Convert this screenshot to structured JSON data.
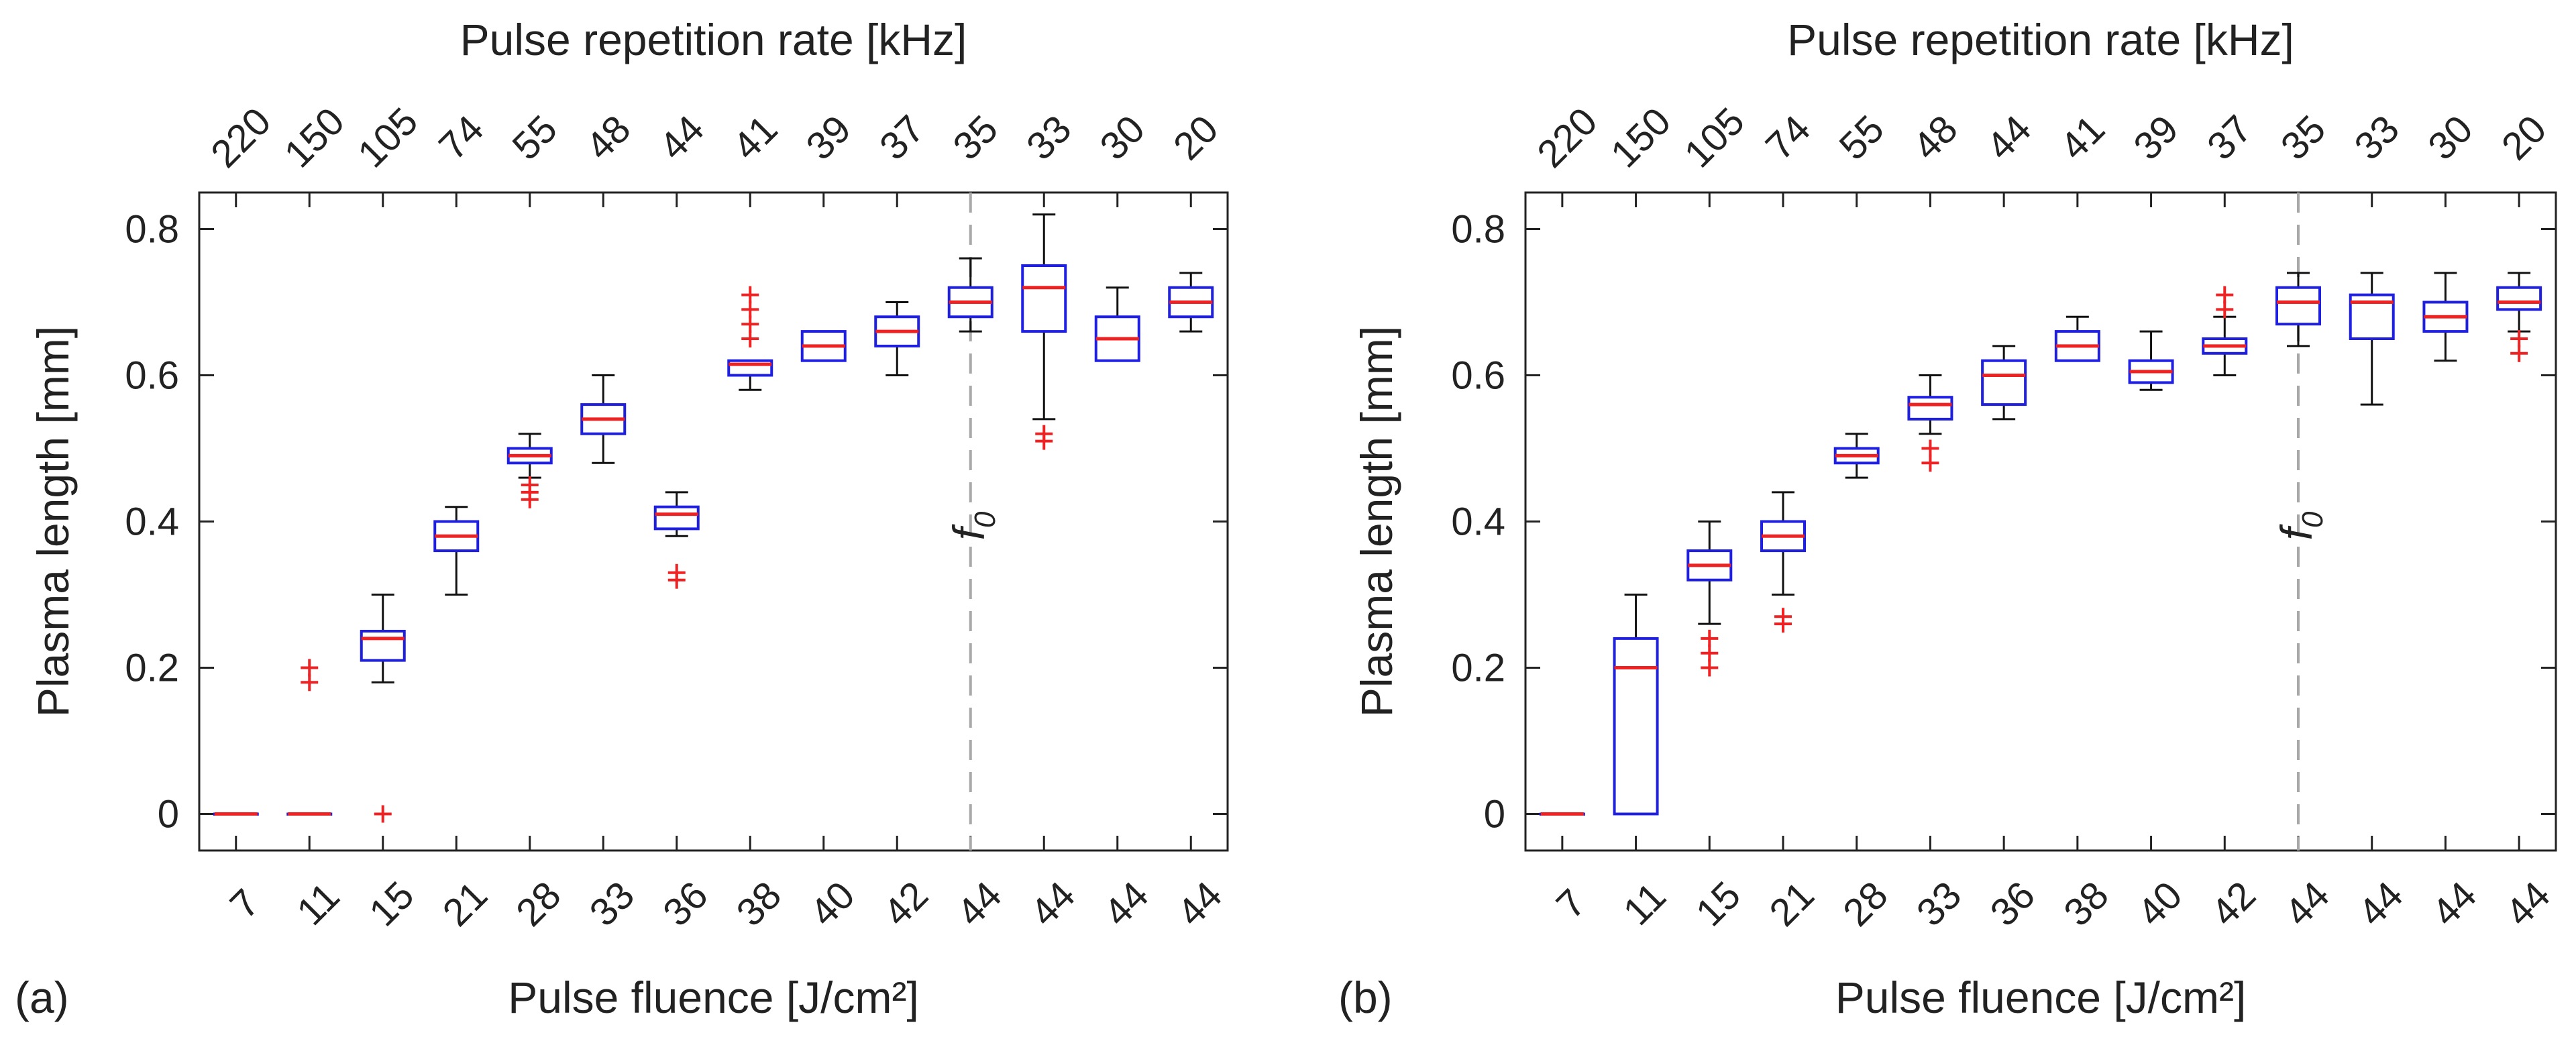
{
  "colors": {
    "box": "#1f1fe0",
    "median": "#ee2222",
    "outlier": "#ee2222",
    "whisker": "#111111",
    "marker_line": "#a8a8a8",
    "axis": "#222222"
  },
  "chart_data": [
    {
      "panel_label": "(a)",
      "type": "boxplot",
      "xlabel": "Pulse fluence [J/cm²]",
      "ylabel": "Plasma length [mm]",
      "top_xlabel": "Pulse repetition rate [kHz]",
      "ylim": [
        -0.05,
        0.85
      ],
      "yticks": [
        0,
        0.2,
        0.4,
        0.6,
        0.8
      ],
      "ytick_labels": [
        "0",
        "0.2",
        "0.4",
        "0.6",
        "0.8"
      ],
      "categories": [
        "7",
        "11",
        "15",
        "21",
        "28",
        "33",
        "36",
        "38",
        "40",
        "42",
        "44",
        "44",
        "44",
        "44"
      ],
      "top_categories": [
        "220",
        "150",
        "105",
        "74",
        "55",
        "48",
        "44",
        "41",
        "39",
        "37",
        "35",
        "33",
        "30",
        "20"
      ],
      "marker": {
        "label": "f",
        "subscript": "0",
        "after_index": 10
      },
      "boxes": [
        {
          "q1": 0,
          "median": 0,
          "q3": 0,
          "wlo": 0,
          "whi": 0,
          "outliers": []
        },
        {
          "q1": 0,
          "median": 0,
          "q3": 0,
          "wlo": 0,
          "whi": 0,
          "outliers": [
            0.18,
            0.2
          ]
        },
        {
          "q1": 0.21,
          "median": 0.24,
          "q3": 0.25,
          "wlo": 0.18,
          "whi": 0.3,
          "outliers": [
            0
          ]
        },
        {
          "q1": 0.36,
          "median": 0.38,
          "q3": 0.4,
          "wlo": 0.3,
          "whi": 0.42,
          "outliers": []
        },
        {
          "q1": 0.48,
          "median": 0.49,
          "q3": 0.5,
          "wlo": 0.46,
          "whi": 0.52,
          "outliers": [
            0.43,
            0.44,
            0.45
          ]
        },
        {
          "q1": 0.52,
          "median": 0.54,
          "q3": 0.56,
          "wlo": 0.48,
          "whi": 0.6,
          "outliers": []
        },
        {
          "q1": 0.39,
          "median": 0.41,
          "q3": 0.42,
          "wlo": 0.38,
          "whi": 0.44,
          "outliers": [
            0.32,
            0.33
          ]
        },
        {
          "q1": 0.6,
          "median": 0.615,
          "q3": 0.62,
          "wlo": 0.58,
          "whi": 0.62,
          "outliers": [
            0.65,
            0.67,
            0.69,
            0.71
          ]
        },
        {
          "q1": 0.62,
          "median": 0.64,
          "q3": 0.66,
          "wlo": 0.62,
          "whi": 0.66,
          "outliers": []
        },
        {
          "q1": 0.64,
          "median": 0.66,
          "q3": 0.68,
          "wlo": 0.6,
          "whi": 0.7,
          "outliers": []
        },
        {
          "q1": 0.68,
          "median": 0.7,
          "q3": 0.72,
          "wlo": 0.66,
          "whi": 0.76,
          "outliers": []
        },
        {
          "q1": 0.66,
          "median": 0.72,
          "q3": 0.75,
          "wlo": 0.54,
          "whi": 0.82,
          "outliers": [
            0.51,
            0.52
          ]
        },
        {
          "q1": 0.62,
          "median": 0.65,
          "q3": 0.68,
          "wlo": 0.62,
          "whi": 0.72,
          "outliers": []
        },
        {
          "q1": 0.68,
          "median": 0.7,
          "q3": 0.72,
          "wlo": 0.66,
          "whi": 0.74,
          "outliers": []
        }
      ]
    },
    {
      "panel_label": "(b)",
      "type": "boxplot",
      "xlabel": "Pulse fluence [J/cm²]",
      "ylabel": "Plasma length [mm]",
      "top_xlabel": "Pulse repetition rate [kHz]",
      "ylim": [
        -0.05,
        0.85
      ],
      "yticks": [
        0,
        0.2,
        0.4,
        0.6,
        0.8
      ],
      "ytick_labels": [
        "0",
        "0.2",
        "0.4",
        "0.6",
        "0.8"
      ],
      "categories": [
        "7",
        "11",
        "15",
        "21",
        "28",
        "33",
        "36",
        "38",
        "40",
        "42",
        "44",
        "44",
        "44",
        "44"
      ],
      "top_categories": [
        "220",
        "150",
        "105",
        "74",
        "55",
        "48",
        "44",
        "41",
        "39",
        "37",
        "35",
        "33",
        "30",
        "20"
      ],
      "marker": {
        "label": "f",
        "subscript": "0",
        "after_index": 10
      },
      "boxes": [
        {
          "q1": 0,
          "median": 0,
          "q3": 0,
          "wlo": 0,
          "whi": 0,
          "outliers": []
        },
        {
          "q1": 0,
          "median": 0.2,
          "q3": 0.24,
          "wlo": 0,
          "whi": 0.3,
          "outliers": []
        },
        {
          "q1": 0.32,
          "median": 0.34,
          "q3": 0.36,
          "wlo": 0.26,
          "whi": 0.4,
          "outliers": [
            0.2,
            0.22,
            0.24
          ]
        },
        {
          "q1": 0.36,
          "median": 0.38,
          "q3": 0.4,
          "wlo": 0.3,
          "whi": 0.44,
          "outliers": [
            0.26,
            0.27
          ]
        },
        {
          "q1": 0.48,
          "median": 0.49,
          "q3": 0.5,
          "wlo": 0.46,
          "whi": 0.52,
          "outliers": []
        },
        {
          "q1": 0.54,
          "median": 0.56,
          "q3": 0.57,
          "wlo": 0.52,
          "whi": 0.6,
          "outliers": [
            0.48,
            0.5
          ]
        },
        {
          "q1": 0.56,
          "median": 0.6,
          "q3": 0.62,
          "wlo": 0.54,
          "whi": 0.64,
          "outliers": []
        },
        {
          "q1": 0.62,
          "median": 0.64,
          "q3": 0.66,
          "wlo": 0.62,
          "whi": 0.68,
          "outliers": []
        },
        {
          "q1": 0.59,
          "median": 0.605,
          "q3": 0.62,
          "wlo": 0.58,
          "whi": 0.66,
          "outliers": []
        },
        {
          "q1": 0.63,
          "median": 0.64,
          "q3": 0.65,
          "wlo": 0.6,
          "whi": 0.68,
          "outliers": [
            0.69,
            0.71
          ]
        },
        {
          "q1": 0.67,
          "median": 0.7,
          "q3": 0.72,
          "wlo": 0.64,
          "whi": 0.74,
          "outliers": []
        },
        {
          "q1": 0.65,
          "median": 0.7,
          "q3": 0.71,
          "wlo": 0.56,
          "whi": 0.74,
          "outliers": []
        },
        {
          "q1": 0.66,
          "median": 0.68,
          "q3": 0.7,
          "wlo": 0.62,
          "whi": 0.74,
          "outliers": []
        },
        {
          "q1": 0.69,
          "median": 0.7,
          "q3": 0.72,
          "wlo": 0.66,
          "whi": 0.74,
          "outliers": [
            0.63,
            0.65
          ]
        }
      ]
    }
  ]
}
